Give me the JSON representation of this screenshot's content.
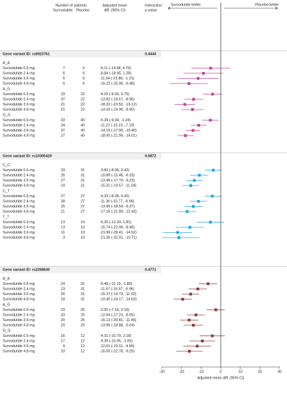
{
  "header": {
    "patients": "Number of patients",
    "survodutide": "Survodutide",
    "placebo": "Placebo",
    "diff": [
      "Adjusted mean",
      "diff. (95% CI)"
    ],
    "interaction": [
      "Interaction",
      "p-value"
    ],
    "left_better": "Survodutide better",
    "right_better": "Placebo better"
  },
  "chart_data": {
    "type": "forest",
    "xlim": [
      -30,
      30
    ],
    "xticks": [
      -30,
      -20,
      -10,
      0,
      10,
      20,
      30
    ],
    "xlabel": "Adjusted mean diff. (95% CI)",
    "panels": [
      {
        "gene": "Gene variant ID: rs6923761",
        "p_value": 0.4444,
        "color": "#c2449b",
        "groups": [
          {
            "name": "A_A",
            "rows": [
              {
                "label": "Survodutide 0.6 mg",
                "n_survodutide": 7,
                "n_placebo": 6,
                "estimate": -5.11,
                "lower": -14.98,
                "upper": 4.76,
                "ci_label": "-5.11 (-14.98, 4.76)"
              },
              {
                "label": "Survodutide 2.4 mg",
                "n_survodutide": 6,
                "n_placebo": 6,
                "estimate": -8.84,
                "lower": -18.95,
                "upper": 1.28,
                "ci_label": "-8.84 (-18.95, 1.28)"
              },
              {
                "label": "Survodutide 3.6 mg",
                "n_survodutide": 5,
                "n_placebo": 6,
                "estimate": -11.54,
                "lower": -21.86,
                "upper": -1.21,
                "ci_label": "-11.54 (-21.86, -1.21)"
              },
              {
                "label": "Survodutide 4.8 mg",
                "n_survodutide": 6,
                "n_placebo": 6,
                "estimate": -16.22,
                "lower": -25.96,
                "upper": -6.48,
                "ci_label": "-16.22 (-25.96, -6.48)"
              }
            ]
          },
          {
            "name": "A_G",
            "rows": [
              {
                "label": "Survodutide 0.6 mg",
                "n_survodutide": 33,
                "n_placebo": 22,
                "estimate": -4.15,
                "lower": -9.05,
                "upper": 0.75,
                "ci_label": "-4.15 (-9.05, 0.75)"
              },
              {
                "label": "Survodutide 2.4 mg",
                "n_survodutide": 37,
                "n_placebo": 22,
                "estimate": -13.82,
                "lower": -18.67,
                "upper": -8.96,
                "ci_label": "-13.82 (-18.67, -8.96)"
              },
              {
                "label": "Survodutide 3.6 mg",
                "n_survodutide": 21,
                "n_placebo": 22,
                "estimate": -18.32,
                "lower": -23.52,
                "upper": -13.12,
                "ci_label": "-18.32 (-23.52, -13.12)"
              },
              {
                "label": "Survodutide 4.8 mg",
                "n_survodutide": 15,
                "n_placebo": 22,
                "estimate": -14.43,
                "lower": -19.96,
                "upper": -8.9,
                "ci_label": "-14.43 (-19.96, -8.90)"
              }
            ]
          },
          {
            "name": "G_G",
            "rows": [
              {
                "label": "Survodutide 0.6 mg",
                "n_survodutide": 33,
                "n_placebo": 40,
                "estimate": -5.29,
                "lower": -9.34,
                "upper": -1.24,
                "ci_label": "-5.29 (-9.34, -1.24)"
              },
              {
                "label": "Survodutide 2.4 mg",
                "n_survodutide": 34,
                "n_placebo": 40,
                "estimate": -11.21,
                "lower": -15.23,
                "upper": -7.19,
                "ci_label": "-11.21 (-15.23, -7.19)"
              },
              {
                "label": "Survodutide 3.6 mg",
                "n_survodutide": 37,
                "n_placebo": 40,
                "estimate": -14.15,
                "lower": -17.9,
                "upper": -10.4,
                "ci_label": "-14.15 (-17.90, -10.40)"
              },
              {
                "label": "Survodutide 4.8 mg",
                "n_survodutide": 27,
                "n_placebo": 40,
                "estimate": -18.0,
                "lower": -21.99,
                "upper": -14.01,
                "ci_label": "-18.00 (-21.99, -14.01)"
              }
            ]
          }
        ]
      },
      {
        "gene": "Gene variant ID: rs10305420",
        "p_value": 0.6872,
        "color": "#1ea9da",
        "groups": [
          {
            "name": "C_C",
            "rows": [
              {
                "label": "Survodutide 0.6 mg",
                "n_survodutide": 33,
                "n_placebo": 31,
                "estimate": -3.82,
                "lower": -8.06,
                "upper": 0.42,
                "ci_label": "-3.82 (-8.06, 0.42)"
              },
              {
                "label": "Survodutide 2.4 mg",
                "n_survodutide": 26,
                "n_placebo": 31,
                "estimate": -10.89,
                "lower": -15.46,
                "upper": -6.33,
                "ci_label": "-10.89 (-15.46, -6.33)"
              },
              {
                "label": "Survodutide 3.6 mg",
                "n_survodutide": 27,
                "n_placebo": 31,
                "estimate": -13.46,
                "lower": -17.7,
                "upper": -9.23,
                "ci_label": "-13.46 (-17.70, -9.23)"
              },
              {
                "label": "Survodutide 4.8 mg",
                "n_survodutide": 24,
                "n_placebo": 31,
                "estimate": -15.31,
                "lower": -19.57,
                "upper": -11.04,
                "ci_label": "-15.31 (-19.57, -11.04)"
              }
            ]
          },
          {
            "name": "C_T",
            "rows": [
              {
                "label": "Survodutide 0.6 mg",
                "n_survodutide": 27,
                "n_placebo": 27,
                "estimate": -4.33,
                "lower": -8.08,
                "upper": 0.42,
                "ci_label": "-4.33 (-8.08, 0.42)"
              },
              {
                "label": "Survodutide 2.4 mg",
                "n_survodutide": 38,
                "n_placebo": 27,
                "estimate": -11.36,
                "lower": -15.77,
                "upper": -6.96,
                "ci_label": "-11.36 (-15.77, -6.96)"
              },
              {
                "label": "Survodutide 3.6 mg",
                "n_survodutide": 25,
                "n_placebo": 27,
                "estimate": -13.95,
                "lower": -18.54,
                "upper": -9.37,
                "ci_label": "-13.95 (-18.54, -9.37)"
              },
              {
                "label": "Survodutide 4.8 mg",
                "n_survodutide": 21,
                "n_placebo": 27,
                "estimate": -17.16,
                "lower": -21.89,
                "upper": -12.43,
                "ci_label": "-17.16 (-21.89, -12.43)"
              }
            ]
          },
          {
            "name": "T_T",
            "rows": [
              {
                "label": "Survodutide 0.6 mg",
                "n_survodutide": 13,
                "n_placebo": 10,
                "estimate": -5.26,
                "lower": -12.33,
                "upper": 1.81,
                "ci_label": "-5.26 (-12.33, 1.81)"
              },
              {
                "label": "Survodutide 2.4 mg",
                "n_survodutide": 13,
                "n_placebo": 10,
                "estimate": -15.74,
                "lower": -22.99,
                "upper": -8.48,
                "ci_label": "-15.74 (-22.99, -8.48)"
              },
              {
                "label": "Survodutide 3.6 mg",
                "n_survodutide": 11,
                "n_placebo": 10,
                "estimate": -21.99,
                "lower": -29.41,
                "upper": -14.52,
                "ci_label": "-21.99 (-29.41, -14.52)"
              },
              {
                "label": "Survodutide 4.8 mg",
                "n_survodutide": 3,
                "n_placebo": 10,
                "estimate": -21.36,
                "lower": -32.01,
                "upper": -10.71,
                "ci_label": "-21.36 (-32.01, -10.71)"
              }
            ]
          }
        ]
      },
      {
        "gene": "Gene variant ID: rs2268640",
        "p_value": 0.4771,
        "color": "#8c3b3b",
        "groups": [
          {
            "name": "A_A",
            "rows": [
              {
                "label": "Survodutide 0.6 mg",
                "n_survodutide": 24,
                "n_placebo": 31,
                "estimate": -6.48,
                "lower": -11.13,
                "upper": -1.8,
                "ci_label": "-6.48 (-11.13, -1.80)"
              },
              {
                "label": "Survodutide 2.4 mg",
                "n_survodutide": 23,
                "n_placebo": 31,
                "estimate": -11.67,
                "lower": -16.37,
                "upper": -6.96,
                "ci_label": "-11.67 (-16.37, -6.96)"
              },
              {
                "label": "Survodutide 3.6 mg",
                "n_survodutide": 26,
                "n_placebo": 31,
                "estimate": -15.37,
                "lower": -19.73,
                "upper": -11.02,
                "ci_label": "-15.37 (-19.73, -11.02)"
              },
              {
                "label": "Survodutide 4.8 mg",
                "n_survodutide": 18,
                "n_placebo": 31,
                "estimate": -19.4,
                "lower": -24.17,
                "upper": -14.63,
                "ci_label": "-19.40 (-24.17, -14.63)"
              }
            ]
          },
          {
            "name": "A_G",
            "rows": [
              {
                "label": "Survodutide 0.6 mg",
                "n_survodutide": 33,
                "n_placebo": 25,
                "estimate": -2.5,
                "lower": -7.16,
                "upper": 2.16,
                "ci_label": "-2.50 (-7.16, 2.16)"
              },
              {
                "label": "Survodutide 2.4 mg",
                "n_survodutide": 33,
                "n_placebo": 25,
                "estimate": -12.64,
                "lower": -17.23,
                "upper": -8.05,
                "ci_label": "-12.64 (-17.23, -8.05)"
              },
              {
                "label": "Survodutide 3.6 mg",
                "n_survodutide": 20,
                "n_placebo": 25,
                "estimate": -16.13,
                "lower": -20.81,
                "upper": -11.45,
                "ci_label": "-16.13 (-20.81, -11.45)"
              },
              {
                "label": "Survodutide 4.8 mg",
                "n_survodutide": 20,
                "n_placebo": 25,
                "estimate": -13.96,
                "lower": -18.88,
                "upper": -9.04,
                "ci_label": "-13.96 (-18.88, -9.04)"
              }
            ]
          },
          {
            "name": "G_G",
            "rows": [
              {
                "label": "Survodutide 0.6 mg",
                "n_survodutide": 16,
                "n_placebo": 12,
                "estimate": -4.31,
                "lower": -10.79,
                "upper": 2.18,
                "ci_label": "-4.31 (-10.79, 2.18)"
              },
              {
                "label": "Survodutide 2.4 mg",
                "n_survodutide": 17,
                "n_placebo": 12,
                "estimate": -9.39,
                "lower": -15.95,
                "upper": -2.83,
                "ci_label": "-9.39 (-15.95, -2.83)"
              },
              {
                "label": "Survodutide 3.6 mg",
                "n_survodutide": 9,
                "n_placebo": 12,
                "estimate": -12.01,
                "lower": -19.11,
                "upper": -4.9,
                "ci_label": "-12.01 (-19.11, -4.90)"
              },
              {
                "label": "Survodutide 4.8 mg",
                "n_survodutide": 10,
                "n_placebo": 12,
                "estimate": -16.0,
                "lower": -22.78,
                "upper": -9.29,
                "ci_label": "-16.00 (-22.78, -9.29)"
              }
            ]
          }
        ]
      }
    ]
  }
}
